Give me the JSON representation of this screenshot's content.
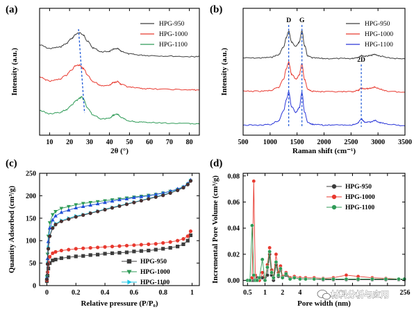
{
  "watermark": {
    "text": "材料分析与应用",
    "icon": "wechat-icon"
  },
  "chart_data": [
    {
      "id": "a",
      "panel_label": "(a)",
      "type": "line",
      "xlabel": "2θ (°)",
      "ylabel": "Intensity (a.u.)",
      "xlim": [
        5,
        85
      ],
      "xticks": [
        10,
        20,
        30,
        40,
        50,
        60,
        70,
        80
      ],
      "legend_position": "top-right",
      "series": [
        {
          "name": "HPG-950",
          "color": "#3c3c3c",
          "offset": 2.0,
          "x": [
            5,
            10,
            15,
            18,
            21,
            23,
            25,
            27,
            29,
            32,
            36,
            40,
            42,
            44,
            46,
            50,
            55,
            60,
            70,
            80,
            85
          ],
          "y": [
            0.58,
            0.45,
            0.5,
            0.62,
            0.82,
            0.98,
            1.05,
            0.95,
            0.72,
            0.46,
            0.32,
            0.34,
            0.42,
            0.44,
            0.34,
            0.24,
            0.2,
            0.18,
            0.16,
            0.14,
            0.14
          ]
        },
        {
          "name": "HPG-1000",
          "color": "#e8392f",
          "offset": 1.0,
          "x": [
            5,
            10,
            15,
            18,
            21,
            23,
            25,
            27,
            29,
            32,
            36,
            40,
            42,
            44,
            46,
            50,
            55,
            60,
            70,
            80,
            85
          ],
          "y": [
            0.62,
            0.48,
            0.54,
            0.68,
            0.9,
            1.06,
            1.08,
            0.95,
            0.7,
            0.44,
            0.3,
            0.32,
            0.42,
            0.46,
            0.34,
            0.24,
            0.2,
            0.18,
            0.16,
            0.14,
            0.14
          ]
        },
        {
          "name": "HPG-1100",
          "color": "#2f9b57",
          "offset": 0.0,
          "x": [
            5,
            10,
            15,
            18,
            21,
            23,
            25,
            26,
            27,
            29,
            32,
            36,
            40,
            42,
            44,
            46,
            50,
            55,
            60,
            70,
            80,
            85
          ],
          "y": [
            0.62,
            0.5,
            0.54,
            0.64,
            0.82,
            0.98,
            1.08,
            1.14,
            1.04,
            0.72,
            0.44,
            0.3,
            0.32,
            0.44,
            0.48,
            0.34,
            0.22,
            0.18,
            0.16,
            0.14,
            0.12,
            0.12
          ]
        }
      ],
      "annotations": [
        {
          "type": "dashed-guide",
          "x_top": 24.5,
          "x_bottom": 27.5,
          "color": "#1a56d6"
        }
      ]
    },
    {
      "id": "b",
      "panel_label": "(b)",
      "type": "line",
      "xlabel": "Raman shift (cm⁻¹)",
      "ylabel": "Intensity (a.u.)",
      "xlim": [
        500,
        3500
      ],
      "xticks": [
        500,
        1000,
        1500,
        2000,
        2500,
        3000,
        3500
      ],
      "legend_position": "top-right",
      "series": [
        {
          "name": "HPG-950",
          "color": "#3c3c3c",
          "offset": 2.0,
          "x": [
            500,
            800,
            1000,
            1150,
            1250,
            1300,
            1345,
            1400,
            1480,
            1540,
            1590,
            1640,
            1700,
            1800,
            2000,
            2300,
            2500,
            2620,
            2690,
            2760,
            2850,
            2940,
            3050,
            3200,
            3500
          ],
          "y": [
            0.08,
            0.08,
            0.1,
            0.18,
            0.45,
            0.78,
            1.0,
            0.62,
            0.48,
            0.62,
            1.02,
            0.5,
            0.14,
            0.08,
            0.06,
            0.06,
            0.06,
            0.1,
            0.16,
            0.14,
            0.16,
            0.2,
            0.14,
            0.08,
            0.04
          ]
        },
        {
          "name": "HPG-1000",
          "color": "#e8392f",
          "offset": 1.0,
          "x": [
            500,
            800,
            1000,
            1150,
            1250,
            1300,
            1345,
            1400,
            1480,
            1540,
            1590,
            1640,
            1700,
            1800,
            2000,
            2300,
            2500,
            2620,
            2690,
            2760,
            2850,
            2940,
            3050,
            3200,
            3500
          ],
          "y": [
            0.08,
            0.08,
            0.1,
            0.2,
            0.5,
            0.85,
            1.08,
            0.66,
            0.5,
            0.64,
            1.02,
            0.48,
            0.14,
            0.08,
            0.06,
            0.06,
            0.06,
            0.1,
            0.18,
            0.16,
            0.18,
            0.22,
            0.14,
            0.08,
            0.04
          ]
        },
        {
          "name": "HPG-1100",
          "color": "#2a36d8",
          "offset": 0.0,
          "x": [
            500,
            800,
            1000,
            1150,
            1250,
            1300,
            1345,
            1400,
            1480,
            1540,
            1590,
            1640,
            1700,
            1800,
            2000,
            2300,
            2500,
            2620,
            2690,
            2760,
            2850,
            2940,
            3050,
            3200,
            3500
          ],
          "y": [
            0.06,
            0.06,
            0.08,
            0.2,
            0.55,
            0.92,
            1.2,
            0.68,
            0.5,
            0.66,
            1.18,
            0.5,
            0.14,
            0.08,
            0.06,
            0.06,
            0.06,
            0.12,
            0.26,
            0.16,
            0.16,
            0.22,
            0.14,
            0.08,
            0.04
          ]
        }
      ],
      "annotations": [
        {
          "type": "peak-label",
          "text": "D",
          "x": 1345
        },
        {
          "type": "peak-label",
          "text": "G",
          "x": 1590
        },
        {
          "type": "peak-label",
          "text": "2D",
          "x": 2690
        }
      ]
    },
    {
      "id": "c",
      "panel_label": "(c)",
      "type": "scatter",
      "xlabel": "Relative pressure (P/P₀)",
      "ylabel": "Quantity Adsorbed (cm³/g)",
      "xlim": [
        -0.05,
        1.05
      ],
      "ylim": [
        0,
        250
      ],
      "xticks": [
        0.0,
        0.2,
        0.4,
        0.6,
        0.8,
        1.0
      ],
      "yticks": [
        0,
        50,
        100,
        150,
        200,
        250
      ],
      "legend_position": "bottom-right",
      "series": [
        {
          "name": "HPG-950",
          "color": "#3c3c3c",
          "marker": "square",
          "x": [
            0.0,
            0.005,
            0.01,
            0.02,
            0.04,
            0.06,
            0.1,
            0.15,
            0.2,
            0.25,
            0.3,
            0.35,
            0.4,
            0.45,
            0.5,
            0.55,
            0.6,
            0.65,
            0.7,
            0.75,
            0.8,
            0.85,
            0.9,
            0.94,
            0.97,
            0.99
          ],
          "y": [
            10,
            22,
            38,
            50,
            56,
            58,
            61,
            63,
            65,
            66,
            68,
            69,
            71,
            72,
            73,
            74,
            76,
            77,
            78,
            80,
            82,
            84,
            87,
            92,
            100,
            112
          ]
        },
        {
          "name": "HPG-950",
          "color": "#e8392f",
          "marker": "circle",
          "x": [
            0.0,
            0.005,
            0.01,
            0.02,
            0.04,
            0.06,
            0.1,
            0.15,
            0.2,
            0.25,
            0.3,
            0.35,
            0.4,
            0.45,
            0.5,
            0.55,
            0.6,
            0.65,
            0.7,
            0.75,
            0.8,
            0.85,
            0.9,
            0.94,
            0.97,
            0.99
          ],
          "y": [
            12,
            30,
            50,
            64,
            72,
            75,
            78,
            80,
            82,
            83,
            84,
            85,
            86,
            87,
            88,
            89,
            90,
            91,
            92,
            93,
            95,
            97,
            100,
            104,
            110,
            121
          ]
        },
        {
          "name": "HPG-1000",
          "color": "#2f9b57",
          "marker": "triangle-down",
          "x": [
            0.0,
            0.005,
            0.01,
            0.02,
            0.04,
            0.06,
            0.1,
            0.15,
            0.2,
            0.25,
            0.3,
            0.35,
            0.4,
            0.45,
            0.5,
            0.55,
            0.6,
            0.65,
            0.7,
            0.75,
            0.8,
            0.85,
            0.9,
            0.94,
            0.97,
            0.99
          ],
          "y": [
            20,
            70,
            110,
            140,
            158,
            165,
            172,
            176,
            180,
            183,
            185,
            187,
            189,
            191,
            193,
            195,
            197,
            199,
            201,
            203,
            206,
            210,
            214,
            219,
            225,
            233
          ]
        },
        {
          "name": "HPG-1000",
          "color": "#1f4fd8",
          "marker": "triangle-up",
          "x": [
            0.0,
            0.005,
            0.01,
            0.02,
            0.04,
            0.06,
            0.1,
            0.15,
            0.2,
            0.25,
            0.3,
            0.35,
            0.4,
            0.45,
            0.5,
            0.55,
            0.6,
            0.65,
            0.7,
            0.75,
            0.8,
            0.85,
            0.9,
            0.94,
            0.97,
            0.99
          ],
          "y": [
            18,
            60,
            98,
            128,
            146,
            155,
            163,
            168,
            173,
            176,
            179,
            182,
            185,
            188,
            191,
            193,
            196,
            198,
            200,
            203,
            206,
            210,
            215,
            220,
            227,
            235
          ]
        },
        {
          "name": "HPG-1100",
          "color": "#1cc7e6",
          "marker": "triangle-right",
          "x": [
            0.0,
            0.005,
            0.01,
            0.02,
            0.04,
            0.06,
            0.1,
            0.15,
            0.2,
            0.25,
            0.3,
            0.35,
            0.4,
            0.45,
            0.5,
            0.55,
            0.6,
            0.65,
            0.7,
            0.75,
            0.8,
            0.85,
            0.9,
            0.94,
            0.97,
            0.99
          ],
          "y": [
            15,
            50,
            85,
            112,
            130,
            138,
            145,
            150,
            155,
            158,
            162,
            166,
            170,
            174,
            178,
            182,
            186,
            190,
            194,
            198,
            202,
            207,
            213,
            219,
            226,
            234
          ]
        },
        {
          "name": "HPG-1100",
          "color": "#4a3030",
          "marker": "circle",
          "x": [
            0.0,
            0.005,
            0.01,
            0.02,
            0.04,
            0.06,
            0.1,
            0.15,
            0.2,
            0.25,
            0.3,
            0.35,
            0.4,
            0.45,
            0.5,
            0.55,
            0.6,
            0.65,
            0.7,
            0.75,
            0.8,
            0.85,
            0.9,
            0.94,
            0.97,
            0.99
          ],
          "y": [
            14,
            48,
            82,
            110,
            128,
            136,
            143,
            148,
            153,
            157,
            161,
            165,
            169,
            173,
            177,
            181,
            185,
            189,
            193,
            197,
            201,
            206,
            212,
            218,
            225,
            233
          ]
        }
      ]
    },
    {
      "id": "d",
      "panel_label": "(d)",
      "type": "line",
      "xlabel": "Pore width (nm)",
      "ylabel": "Incremental Pore Volume (cm³/g)",
      "xscale": "log",
      "xlim": [
        0.42,
        256
      ],
      "ylim": [
        -0.004,
        0.082
      ],
      "xticks": [
        0.5,
        1,
        2,
        4,
        8,
        16,
        32,
        64,
        128,
        256
      ],
      "xticklabels": [
        "0.5",
        "1",
        "2",
        "4",
        "",
        "",
        "",
        "",
        "",
        "256"
      ],
      "yticks": [
        0.0,
        0.02,
        0.04,
        0.06,
        0.08
      ],
      "yticklabels": [
        "0.00",
        "0.02",
        "0.04",
        "0.06",
        "0.08"
      ],
      "legend_position": "top-right",
      "series": [
        {
          "name": "HPG-950",
          "color": "#3c3c3c",
          "x": [
            0.5,
            0.55,
            0.6,
            0.64,
            0.68,
            0.73,
            0.8,
            0.9,
            1.0,
            1.1,
            1.2,
            1.3,
            1.4,
            1.55,
            1.7,
            1.85,
            2.0,
            2.3,
            2.7,
            3.2,
            4,
            5,
            7,
            10,
            15,
            25,
            40,
            70,
            120,
            200,
            250
          ],
          "y": [
            0.0,
            0.0,
            0.0,
            0.0,
            0.0,
            0.002,
            0.0,
            0.002,
            0.0,
            0.004,
            0.02,
            0.004,
            0.0,
            0.012,
            0.003,
            0.008,
            0.002,
            0.004,
            0.001,
            0.002,
            0.001,
            0.001,
            0.001,
            0.0005,
            0.0005,
            0.0005,
            0.0005,
            0.0005,
            0.0005,
            0.0005,
            0.0005
          ]
        },
        {
          "name": "HPG-1000",
          "color": "#e8392f",
          "x": [
            0.5,
            0.55,
            0.6,
            0.64,
            0.68,
            0.73,
            0.8,
            0.9,
            1.0,
            1.1,
            1.2,
            1.3,
            1.4,
            1.55,
            1.7,
            1.85,
            2.0,
            2.3,
            2.7,
            3.2,
            4,
            5,
            7,
            10,
            15,
            25,
            40,
            70,
            120,
            200,
            250
          ],
          "y": [
            0.0,
            0.0,
            0.002,
            0.076,
            0.004,
            0.0,
            0.0,
            0.006,
            0.0,
            0.012,
            0.025,
            0.008,
            0.002,
            0.02,
            0.006,
            0.011,
            0.003,
            0.006,
            0.002,
            0.003,
            0.002,
            0.002,
            0.002,
            0.0015,
            0.002,
            0.004,
            0.003,
            0.002,
            0.0015,
            0.001,
            0.001
          ]
        },
        {
          "name": "HPG-1100",
          "color": "#2f9b57",
          "x": [
            0.5,
            0.55,
            0.6,
            0.64,
            0.68,
            0.73,
            0.8,
            0.9,
            1.0,
            1.1,
            1.2,
            1.3,
            1.4,
            1.55,
            1.7,
            1.85,
            2.0,
            2.3,
            2.7,
            3.2,
            4,
            5,
            7,
            10,
            15,
            25,
            40,
            70,
            120,
            200,
            250
          ],
          "y": [
            0.0,
            0.0,
            0.042,
            0.004,
            0.0,
            0.0,
            0.002,
            0.016,
            0.0,
            0.01,
            0.022,
            0.006,
            0.002,
            0.014,
            0.004,
            0.009,
            0.002,
            0.005,
            0.001,
            0.002,
            0.001,
            0.001,
            0.001,
            0.001,
            0.001,
            0.001,
            0.001,
            0.001,
            0.001,
            0.001,
            0.001
          ]
        }
      ]
    }
  ]
}
